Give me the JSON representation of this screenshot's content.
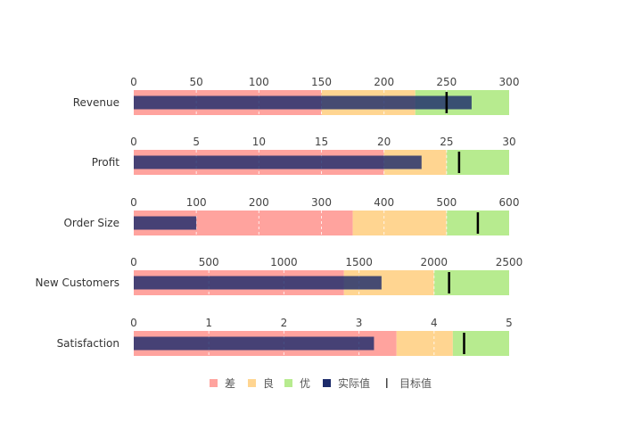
{
  "chart_data": {
    "type": "bullet",
    "title": "",
    "legend": {
      "position": "bottom",
      "items": [
        {
          "label": "差",
          "color": "#ffa39e",
          "kind": "square"
        },
        {
          "label": "良",
          "color": "#ffd591",
          "kind": "square"
        },
        {
          "label": "优",
          "color": "#b7eb8f",
          "kind": "square"
        },
        {
          "label": "实际值",
          "color": "#1d2c6b",
          "kind": "square"
        },
        {
          "label": "目标值",
          "color": "#000000",
          "kind": "line"
        }
      ]
    },
    "rows": [
      {
        "category": "Revenue",
        "range_max": 300,
        "ticks": [
          0,
          50,
          100,
          150,
          200,
          250,
          300
        ],
        "bands": [
          150,
          225,
          300
        ],
        "actual": 270,
        "target": 250
      },
      {
        "category": "Profit",
        "range_max": 30,
        "ticks": [
          0,
          5,
          10,
          15,
          20,
          25,
          30
        ],
        "bands": [
          20,
          25,
          30
        ],
        "actual": 23,
        "target": 26
      },
      {
        "category": "Order Size",
        "range_max": 600,
        "ticks": [
          0,
          100,
          200,
          300,
          400,
          500,
          600
        ],
        "bands": [
          350,
          500,
          600
        ],
        "actual": 100,
        "target": 550
      },
      {
        "category": "New Customers",
        "range_max": 2500,
        "ticks": [
          0,
          500,
          1000,
          1500,
          2000,
          2500
        ],
        "bands": [
          1400,
          2000,
          2500
        ],
        "actual": 1650,
        "target": 2100
      },
      {
        "category": "Satisfaction",
        "range_max": 5,
        "ticks": [
          0,
          1,
          2,
          3,
          4,
          5
        ],
        "bands": [
          3.5,
          4.25,
          5
        ],
        "actual": 3.2,
        "target": 4.4
      }
    ]
  }
}
